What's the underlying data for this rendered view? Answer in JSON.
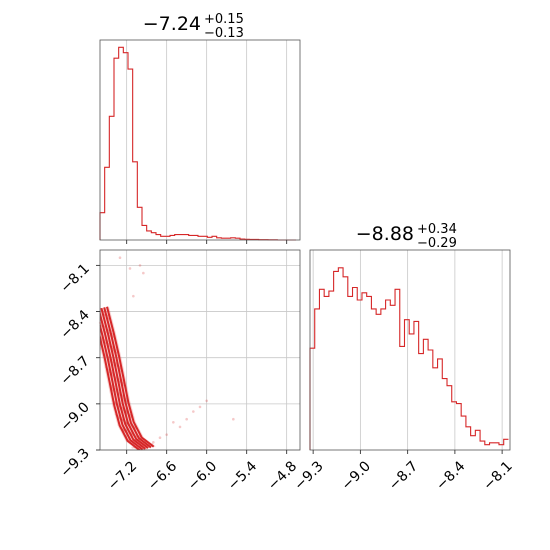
{
  "chart_data": [
    {
      "type": "histogram",
      "panel": "marginal-param-1",
      "title_value": "−7.24",
      "title_upper": "+0.15",
      "title_lower": "−0.13",
      "color": "#d62728",
      "xlim": [
        -7.6,
        -4.6
      ],
      "xticks": [
        -7.2,
        -6.6,
        -6.0,
        -5.4,
        -4.8
      ],
      "bin_edges": [
        -7.6,
        -7.53,
        -7.46,
        -7.39,
        -7.32,
        -7.25,
        -7.18,
        -7.11,
        -7.04,
        -6.97,
        -6.9,
        -6.83,
        -6.76,
        -6.69,
        -6.62,
        -6.55,
        -6.48,
        -6.41,
        -6.34,
        -6.27,
        -6.2,
        -6.13,
        -6.06,
        -5.99,
        -5.92,
        -5.85,
        -5.78,
        -5.71,
        -5.64,
        -5.57,
        -5.5,
        -5.43,
        -5.36,
        -5.29,
        -5.22,
        -5.15,
        -5.08,
        -5.01,
        -4.94,
        -4.87,
        -4.8,
        -4.73,
        -4.66
      ],
      "counts": [
        15,
        40,
        68,
        100,
        106,
        103,
        94,
        43,
        18,
        8,
        5,
        4,
        3,
        2,
        2,
        2.5,
        3,
        3,
        3,
        2.5,
        2.5,
        2,
        2,
        1.5,
        2,
        1.2,
        1,
        1,
        1.2,
        1,
        0.5,
        0.4,
        0.3,
        0.3,
        0.2,
        0.2,
        0.1,
        0.1,
        0,
        0,
        0,
        0
      ],
      "ylim": [
        0,
        110
      ]
    },
    {
      "type": "scatter",
      "panel": "joint-param-1-param-2",
      "color": "#d62728",
      "xlim": [
        -7.6,
        -4.6
      ],
      "ylim": [
        -9.3,
        -8.0
      ],
      "xticks": [
        -7.2,
        -6.6,
        -6.0,
        -5.4,
        -4.8
      ],
      "yticks": [
        -8.1,
        -8.4,
        -8.7,
        -9.0,
        -9.3
      ],
      "contour_levels": 6,
      "contour_ridge": [
        {
          "x": -7.6,
          "y": -8.38
        },
        {
          "x": -7.5,
          "y": -8.55
        },
        {
          "x": -7.42,
          "y": -8.7
        },
        {
          "x": -7.35,
          "y": -8.85
        },
        {
          "x": -7.28,
          "y": -9.0
        },
        {
          "x": -7.2,
          "y": -9.13
        },
        {
          "x": -7.08,
          "y": -9.23
        },
        {
          "x": -6.9,
          "y": -9.29
        }
      ],
      "tail_points": [
        {
          "x": -6.8,
          "y": -9.25
        },
        {
          "x": -6.6,
          "y": -9.2
        },
        {
          "x": -6.4,
          "y": -9.15
        },
        {
          "x": -6.2,
          "y": -9.05
        },
        {
          "x": -6.0,
          "y": -8.98
        },
        {
          "x": -6.5,
          "y": -9.12
        },
        {
          "x": -6.3,
          "y": -9.1
        },
        {
          "x": -6.1,
          "y": -9.02
        },
        {
          "x": -6.7,
          "y": -9.22
        },
        {
          "x": -5.6,
          "y": -9.1
        },
        {
          "x": -7.0,
          "y": -8.1
        },
        {
          "x": -6.95,
          "y": -8.15
        },
        {
          "x": -7.1,
          "y": -8.3
        },
        {
          "x": -7.3,
          "y": -8.05
        },
        {
          "x": -7.15,
          "y": -8.12
        }
      ]
    },
    {
      "type": "histogram",
      "panel": "marginal-param-2",
      "title_value": "−8.88",
      "title_upper": "+0.34",
      "title_lower": "−0.29",
      "color": "#d62728",
      "xlim": [
        -9.32,
        -8.05
      ],
      "xticks": [
        -9.3,
        -9.0,
        -8.7,
        -8.4,
        -8.1
      ],
      "bin_edges": [
        -9.32,
        -9.29,
        -9.26,
        -9.23,
        -9.2,
        -9.17,
        -9.14,
        -9.11,
        -9.08,
        -9.05,
        -9.02,
        -8.99,
        -8.96,
        -8.93,
        -8.9,
        -8.87,
        -8.84,
        -8.81,
        -8.78,
        -8.75,
        -8.72,
        -8.69,
        -8.66,
        -8.63,
        -8.6,
        -8.57,
        -8.54,
        -8.51,
        -8.48,
        -8.45,
        -8.42,
        -8.39,
        -8.36,
        -8.33,
        -8.3,
        -8.27,
        -8.24,
        -8.21,
        -8.18,
        -8.15,
        -8.12,
        -8.09,
        -8.06
      ],
      "counts": [
        57,
        79,
        90,
        86,
        89,
        100,
        102,
        97,
        86,
        91,
        84,
        88,
        86,
        79,
        76,
        79,
        84,
        81,
        90,
        58,
        73,
        65,
        72,
        54,
        62,
        56,
        46,
        51,
        40,
        36,
        27,
        26,
        19,
        13,
        8,
        11,
        5,
        3,
        4,
        4,
        3,
        6
      ],
      "ylim": [
        0,
        112
      ]
    }
  ]
}
